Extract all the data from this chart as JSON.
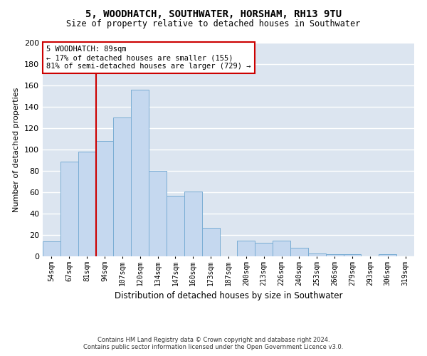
{
  "title": "5, WOODHATCH, SOUTHWATER, HORSHAM, RH13 9TU",
  "subtitle": "Size of property relative to detached houses in Southwater",
  "xlabel": "Distribution of detached houses by size in Southwater",
  "ylabel": "Number of detached properties",
  "categories": [
    "54sqm",
    "67sqm",
    "81sqm",
    "94sqm",
    "107sqm",
    "120sqm",
    "134sqm",
    "147sqm",
    "160sqm",
    "173sqm",
    "187sqm",
    "200sqm",
    "213sqm",
    "226sqm",
    "240sqm",
    "253sqm",
    "266sqm",
    "279sqm",
    "293sqm",
    "306sqm",
    "319sqm"
  ],
  "values": [
    14,
    89,
    98,
    108,
    130,
    156,
    80,
    57,
    61,
    27,
    0,
    15,
    13,
    15,
    8,
    3,
    2,
    2,
    0,
    2,
    0
  ],
  "bar_color": "#c5d8ef",
  "bar_edge_color": "#7aadd4",
  "vline_color": "#cc0000",
  "annotation_text": "5 WOODHATCH: 89sqm\n← 17% of detached houses are smaller (155)\n81% of semi-detached houses are larger (729) →",
  "annotation_box_color": "white",
  "annotation_box_edge_color": "#cc0000",
  "ylim": [
    0,
    200
  ],
  "yticks": [
    0,
    20,
    40,
    60,
    80,
    100,
    120,
    140,
    160,
    180,
    200
  ],
  "background_color": "#dce5f0",
  "grid_color": "white",
  "footer_line1": "Contains HM Land Registry data © Crown copyright and database right 2024.",
  "footer_line2": "Contains public sector information licensed under the Open Government Licence v3.0."
}
